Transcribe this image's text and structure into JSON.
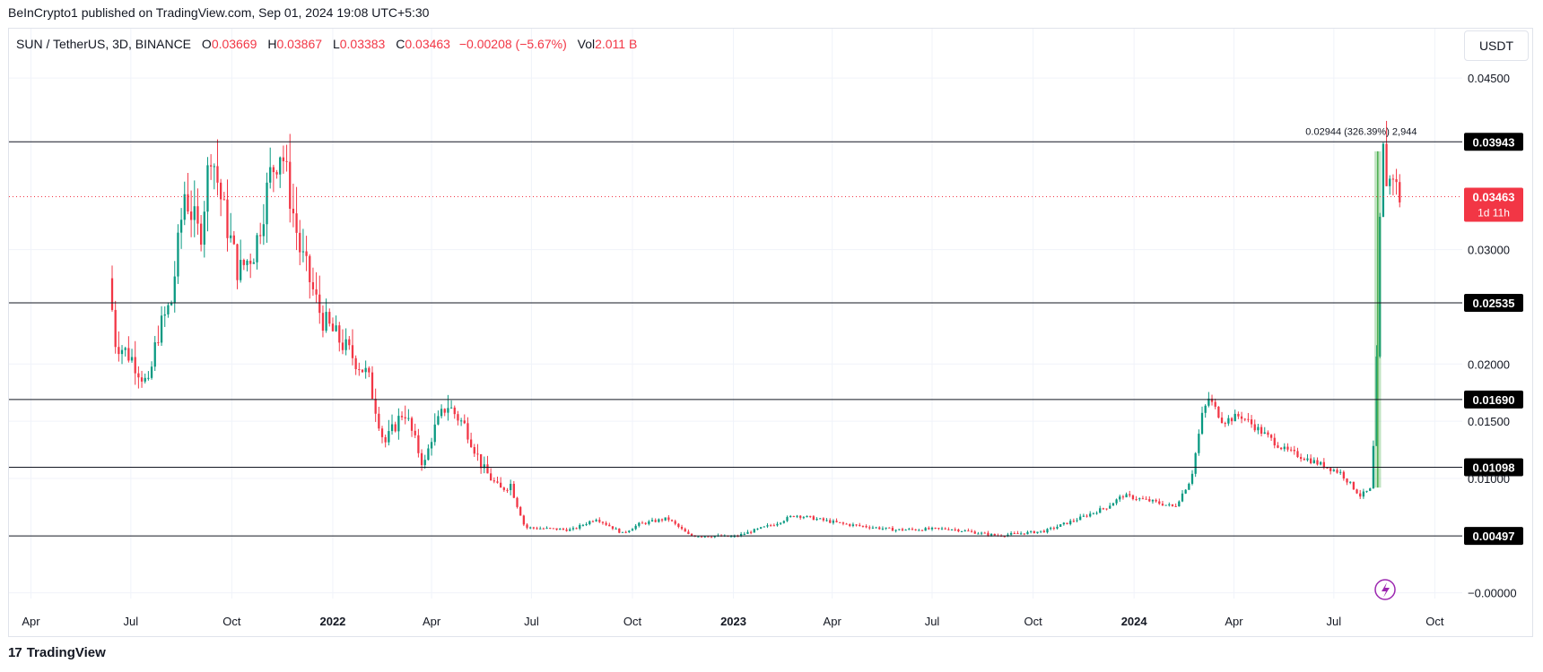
{
  "header": {
    "publisher": "BeInCrypto1 published on TradingView.com, Sep 01, 2024 19:08 UTC+5:30"
  },
  "legend": {
    "symbol": "SUN / TetherUS, 3D, BINANCE",
    "o_label": "O",
    "o_value": "0.03669",
    "h_label": "H",
    "h_value": "0.03867",
    "l_label": "L",
    "l_value": "0.03383",
    "c_label": "C",
    "c_value": "0.03463",
    "change": "−0.00208 (−5.67%)",
    "vol_label": "Vol",
    "vol_value": "2.011 B"
  },
  "currency_button": "USDT",
  "footer": {
    "brand": "TradingView",
    "logo": "17"
  },
  "colors": {
    "up": "#089981",
    "down": "#f23645",
    "measure": "#4caf50",
    "level_line": "#131722",
    "grid": "#f0f3fa"
  },
  "chart_data": {
    "type": "candlestick",
    "ylim": [
      -0.0005,
      0.0465
    ],
    "yticks": [
      "0.04500",
      "0.03000",
      "0.02000",
      "0.01500",
      "0.01000",
      "−0.00000"
    ],
    "yticks_values": [
      0.045,
      0.03,
      0.02,
      0.015,
      0.01,
      0.0
    ],
    "xticks": [
      {
        "label": "Apr",
        "bold": false,
        "date": "2021-04-01"
      },
      {
        "label": "Jul",
        "bold": false,
        "date": "2021-07-01"
      },
      {
        "label": "Oct",
        "bold": false,
        "date": "2021-10-01"
      },
      {
        "label": "2022",
        "bold": true,
        "date": "2022-01-01"
      },
      {
        "label": "Apr",
        "bold": false,
        "date": "2022-04-01"
      },
      {
        "label": "Jul",
        "bold": false,
        "date": "2022-07-01"
      },
      {
        "label": "Oct",
        "bold": false,
        "date": "2022-10-01"
      },
      {
        "label": "2023",
        "bold": true,
        "date": "2023-01-01"
      },
      {
        "label": "Apr",
        "bold": false,
        "date": "2023-04-01"
      },
      {
        "label": "Jul",
        "bold": false,
        "date": "2023-07-01"
      },
      {
        "label": "Oct",
        "bold": false,
        "date": "2023-10-01"
      },
      {
        "label": "2024",
        "bold": true,
        "date": "2024-01-01"
      },
      {
        "label": "Apr",
        "bold": false,
        "date": "2024-04-01"
      },
      {
        "label": "Jul",
        "bold": false,
        "date": "2024-07-01"
      },
      {
        "label": "Oct",
        "bold": false,
        "date": "2024-10-01"
      }
    ],
    "levels": [
      {
        "value": 0.03943,
        "label": "0.03943"
      },
      {
        "value": 0.02535,
        "label": "0.02535"
      },
      {
        "value": 0.0169,
        "label": "0.01690"
      },
      {
        "value": 0.01098,
        "label": "0.01098"
      },
      {
        "value": 0.00497,
        "label": "0.00497"
      }
    ],
    "last_price": {
      "value": 0.03463,
      "label": "0.03463",
      "countdown": "1d 11h"
    },
    "measure": {
      "label": "0.02944 (326.39%) 2,944",
      "start_date": "2024-08-07",
      "end_date": "2024-08-13",
      "low": 0.0092,
      "high": 0.0386
    },
    "price_path": [
      [
        "2021-06-14",
        0.0275
      ],
      [
        "2021-06-20",
        0.022
      ],
      [
        "2021-07-05",
        0.0205
      ],
      [
        "2021-07-20",
        0.018
      ],
      [
        "2021-07-28",
        0.0225
      ],
      [
        "2021-08-10",
        0.0255
      ],
      [
        "2021-08-22",
        0.035
      ],
      [
        "2021-09-05",
        0.031
      ],
      [
        "2021-09-15",
        0.039
      ],
      [
        "2021-09-25",
        0.034
      ],
      [
        "2021-10-10",
        0.028
      ],
      [
        "2021-10-25",
        0.03
      ],
      [
        "2021-11-08",
        0.0365
      ],
      [
        "2021-11-18",
        0.039
      ],
      [
        "2021-12-05",
        0.03
      ],
      [
        "2021-12-25",
        0.024
      ],
      [
        "2022-01-15",
        0.0215
      ],
      [
        "2022-02-05",
        0.019
      ],
      [
        "2022-02-20",
        0.013
      ],
      [
        "2022-03-10",
        0.016
      ],
      [
        "2022-03-28",
        0.011
      ],
      [
        "2022-04-05",
        0.014
      ],
      [
        "2022-04-18",
        0.0165
      ],
      [
        "2022-05-05",
        0.0145
      ],
      [
        "2022-05-20",
        0.011
      ],
      [
        "2022-06-05",
        0.009
      ],
      [
        "2022-06-15",
        0.0095
      ],
      [
        "2022-06-28",
        0.0057
      ],
      [
        "2022-08-10",
        0.0055
      ],
      [
        "2022-09-01",
        0.0065
      ],
      [
        "2022-09-25",
        0.0052
      ],
      [
        "2022-10-10",
        0.006
      ],
      [
        "2022-11-05",
        0.0065
      ],
      [
        "2022-11-25",
        0.005
      ],
      [
        "2023-01-05",
        0.0049
      ],
      [
        "2023-02-10",
        0.006
      ],
      [
        "2023-03-01",
        0.0068
      ],
      [
        "2023-04-15",
        0.006
      ],
      [
        "2023-06-01",
        0.0055
      ],
      [
        "2023-07-20",
        0.0056
      ],
      [
        "2023-09-01",
        0.005
      ],
      [
        "2023-10-15",
        0.0054
      ],
      [
        "2023-11-15",
        0.0065
      ],
      [
        "2023-12-10",
        0.0075
      ],
      [
        "2023-12-25",
        0.0085
      ],
      [
        "2024-01-20",
        0.008
      ],
      [
        "2024-02-10",
        0.0075
      ],
      [
        "2024-02-25",
        0.01
      ],
      [
        "2024-03-06",
        0.0155
      ],
      [
        "2024-03-12",
        0.017
      ],
      [
        "2024-03-25",
        0.015
      ],
      [
        "2024-04-10",
        0.0155
      ],
      [
        "2024-04-30",
        0.014
      ],
      [
        "2024-05-20",
        0.0125
      ],
      [
        "2024-06-15",
        0.0115
      ],
      [
        "2024-07-10",
        0.0105
      ],
      [
        "2024-07-28",
        0.0085
      ],
      [
        "2024-08-06",
        0.009
      ],
      [
        "2024-08-11",
        0.015
      ],
      [
        "2024-08-14",
        0.03
      ],
      [
        "2024-08-18",
        0.0385
      ],
      [
        "2024-08-22",
        0.0355
      ],
      [
        "2024-08-28",
        0.037
      ],
      [
        "2024-08-31",
        0.0346
      ]
    ]
  }
}
